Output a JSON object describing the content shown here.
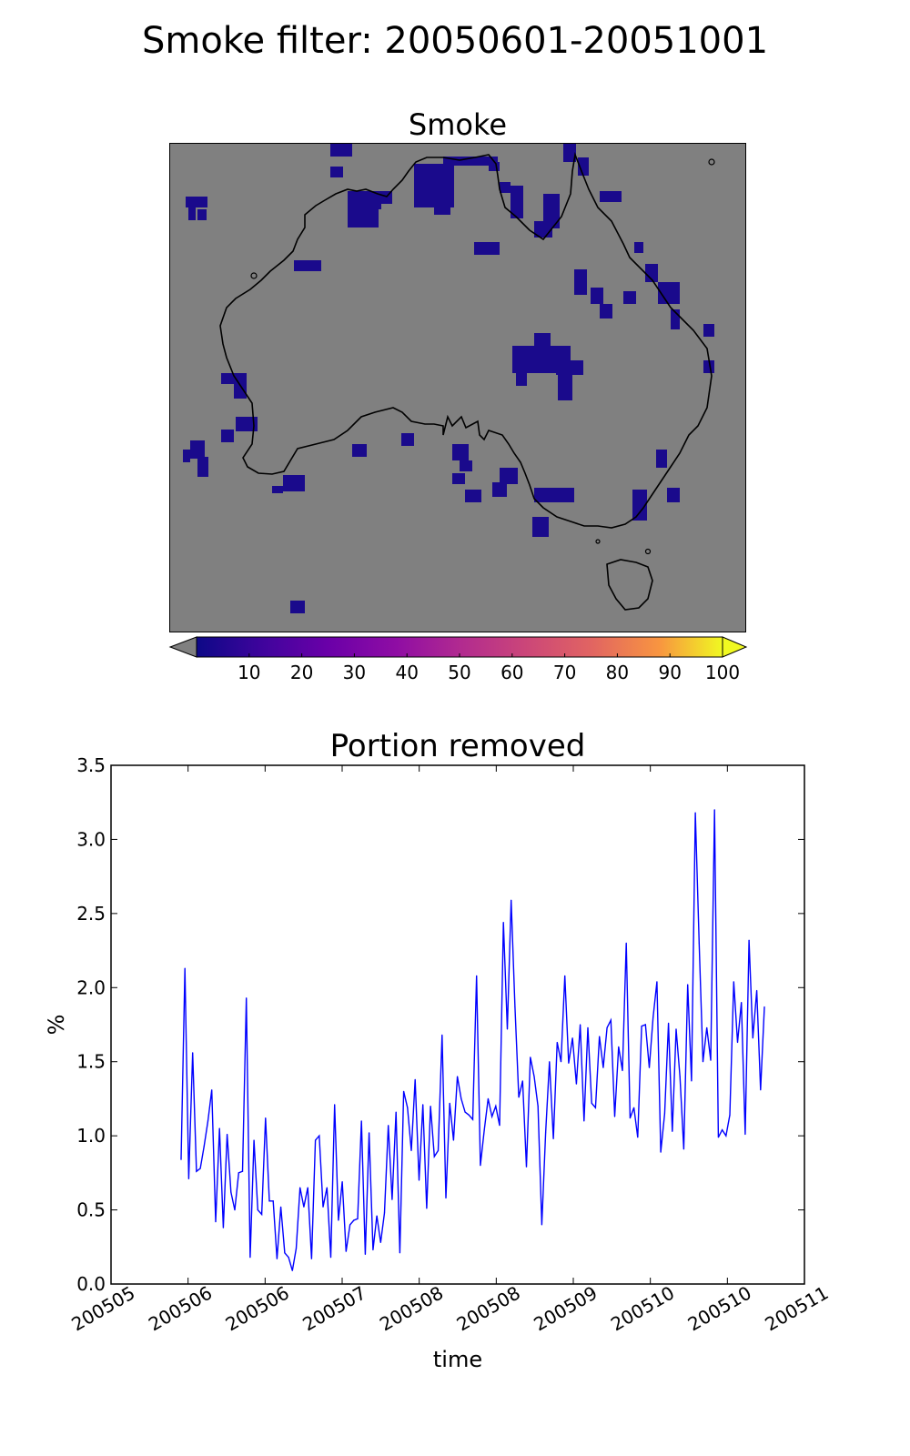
{
  "figure": {
    "suptitle": "Smoke filter: 20050601-20051001"
  },
  "map": {
    "title": "Smoke",
    "background_color": "#808080",
    "smoke_color": "#1a0a8c",
    "colorbar": {
      "colormap": "plasma",
      "under_color": "#808080",
      "ticks": [
        "10",
        "20",
        "30",
        "40",
        "50",
        "60",
        "70",
        "80",
        "90",
        "100"
      ],
      "range": [
        0,
        100
      ],
      "extend": "both"
    }
  },
  "chart_data": {
    "type": "line",
    "title": "Portion removed",
    "xlabel": "time",
    "ylabel": "%",
    "ylim": [
      0,
      3.5
    ],
    "yticks": [
      "0.0",
      "0.5",
      "1.0",
      "1.5",
      "2.0",
      "2.5",
      "3.0",
      "3.5"
    ],
    "xticks": [
      "200505",
      "200506",
      "200506",
      "200507",
      "200508",
      "200508",
      "200509",
      "200510",
      "200510",
      "200511"
    ],
    "line_color": "#0000ff",
    "grid": false,
    "series": [
      {
        "values": [
          0.84,
          2.13,
          0.71,
          1.56,
          0.76,
          0.78,
          0.93,
          1.1,
          1.31,
          0.42,
          1.05,
          0.38,
          1.01,
          0.62,
          0.5,
          0.75,
          0.76,
          1.93,
          0.18,
          0.97,
          0.5,
          0.47,
          1.12,
          0.56,
          0.56,
          0.17,
          0.52,
          0.21,
          0.18,
          0.09,
          0.24,
          0.65,
          0.52,
          0.65,
          0.17,
          0.97,
          1.0,
          0.52,
          0.65,
          0.18,
          1.21,
          0.43,
          0.69,
          0.22,
          0.4,
          0.43,
          0.44,
          1.1,
          0.2,
          1.02,
          0.23,
          0.46,
          0.28,
          0.48,
          1.07,
          0.57,
          1.16,
          0.21,
          1.3,
          1.19,
          0.9,
          1.38,
          0.7,
          1.21,
          0.51,
          1.2,
          0.86,
          0.9,
          1.68,
          0.58,
          1.22,
          0.97,
          1.4,
          1.25,
          1.16,
          1.14,
          1.11,
          2.08,
          0.8,
          1.04,
          1.25,
          1.13,
          1.2,
          1.07,
          2.44,
          1.72,
          2.59,
          1.87,
          1.26,
          1.37,
          0.79,
          1.53,
          1.4,
          1.2,
          0.4,
          1.02,
          1.5,
          0.98,
          1.63,
          1.5,
          2.08,
          1.49,
          1.66,
          1.35,
          1.75,
          1.1,
          1.73,
          1.22,
          1.19,
          1.67,
          1.46,
          1.73,
          1.78,
          1.13,
          1.6,
          1.44,
          2.3,
          1.12,
          1.19,
          0.99,
          1.74,
          1.75,
          1.46,
          1.8,
          2.04,
          0.89,
          1.15,
          1.76,
          1.03,
          1.72,
          1.4,
          0.91,
          2.02,
          1.37,
          3.18,
          2.3,
          1.5,
          1.73,
          1.51,
          3.2,
          0.99,
          1.04,
          1.0,
          1.14,
          2.04,
          1.63,
          1.9,
          1.01,
          2.32,
          1.66,
          1.98,
          1.31,
          1.87
        ]
      }
    ]
  }
}
